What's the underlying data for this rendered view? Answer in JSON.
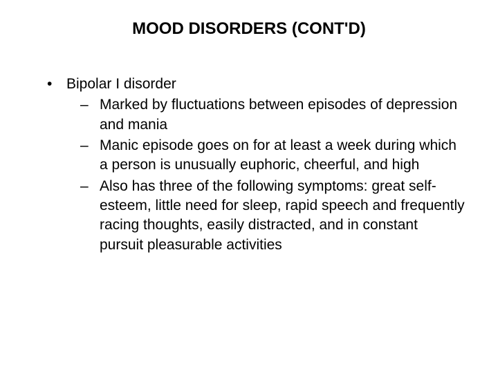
{
  "slide": {
    "title": "MOOD DISORDERS (CONT'D)",
    "background_color": "#ffffff",
    "text_color": "#000000",
    "title_fontsize": 24,
    "body_fontsize": 21,
    "font_family": "Arial",
    "bullets": [
      {
        "level": 1,
        "text": "Bipolar I disorder"
      },
      {
        "level": 2,
        "text": "Marked by fluctuations between episodes of depression and mania"
      },
      {
        "level": 2,
        "text": "Manic episode goes on for at least a week during which a person is unusually euphoric, cheerful, and high"
      },
      {
        "level": 2,
        "text": "Also has three of the following symptoms: great self-esteem, little need for sleep, rapid speech and frequently racing thoughts, easily distracted, and in constant pursuit pleasurable activities"
      }
    ]
  }
}
